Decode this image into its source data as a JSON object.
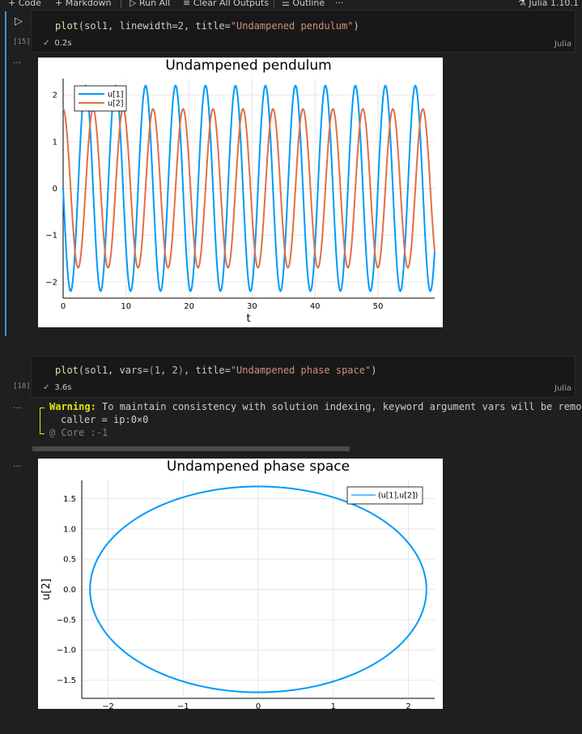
{
  "toolbar": {
    "code_label": "Code",
    "markdown_label": "Markdown",
    "run_all_label": "Run All",
    "clear_outputs_label": "Clear All Outputs",
    "outline_label": "Outline",
    "more_label": "···",
    "kernel_label": "Julia 1.10.1"
  },
  "cells": [
    {
      "exec_count": "[15]",
      "code": {
        "fn": "plot",
        "open": "(",
        "args": "sol1, linewidth=",
        "num": "2",
        "mid": ", title=",
        "str": "\"Undampened pendulum\"",
        "close": ")"
      },
      "status_time": "0.2s",
      "language": "Julia"
    },
    {
      "exec_count": "[18]",
      "code": {
        "fn": "plot",
        "open": "(",
        "args": "sol1, vars=",
        "tuple_open": "(",
        "n1": "1",
        "comma": ", ",
        "n2": "2",
        "tuple_close": ")",
        "mid": ", title=",
        "str": "\"Undampened phase space\"",
        "close": ")"
      },
      "status_time": "3.6s",
      "language": "Julia",
      "warning": {
        "label": "Warning:",
        "text": " To maintain consistency with solution indexing, keyword argument vars will be remo",
        "caller": "caller = ip:0×0",
        "location": "@ Core :-1"
      }
    }
  ],
  "output_menu": "...",
  "chart_data": [
    {
      "type": "line",
      "title": "Undampened pendulum",
      "xlabel": "t",
      "ylabel": "",
      "xlim": [
        0,
        59
      ],
      "ylim": [
        -2.35,
        2.35
      ],
      "xticks": [
        0,
        10,
        20,
        30,
        40,
        50
      ],
      "yticks": [
        -2,
        -1,
        0,
        1,
        2
      ],
      "grid": true,
      "legend": "top-left",
      "series": [
        {
          "name": "u[1]",
          "color": "#009af9",
          "amplitude": 2.2,
          "period": 4.76,
          "phase_deg": 180,
          "samples_t": [
            0,
            1.19,
            2.38,
            3.57,
            4.76
          ],
          "samples_y": [
            -0.2,
            -2.2,
            0,
            2.2,
            0
          ]
        },
        {
          "name": "u[2]",
          "color": "#e26f46",
          "amplitude": 1.7,
          "period": 4.76,
          "phase_deg": 90,
          "samples_t": [
            0,
            1.19,
            2.38,
            3.57,
            4.76
          ],
          "samples_y": [
            1.7,
            0,
            -1.7,
            0,
            1.7
          ]
        }
      ]
    },
    {
      "type": "line",
      "title": "Undampened phase space",
      "xlabel": "",
      "ylabel": "u[2]",
      "xlim": [
        -2.35,
        2.35
      ],
      "ylim": [
        -1.8,
        1.8
      ],
      "xticks": [
        -2,
        -1,
        0,
        1,
        2
      ],
      "yticks": [
        -1.5,
        -1.0,
        -0.5,
        0.0,
        0.5,
        1.0,
        1.5
      ],
      "ytick_labels": [
        "−1.5",
        "−1.0",
        "−0.5",
        "0.0",
        "0.5",
        "1.0",
        "1.5"
      ],
      "grid": true,
      "legend": "top-right",
      "series": [
        {
          "name": "(u[1],u[2])",
          "color": "#009af9",
          "x_radius": 2.24,
          "y_radius": 1.7
        }
      ]
    }
  ],
  "colors": {
    "accent": "#3794ff",
    "success": "#89d185",
    "warning": "#e5e510"
  }
}
